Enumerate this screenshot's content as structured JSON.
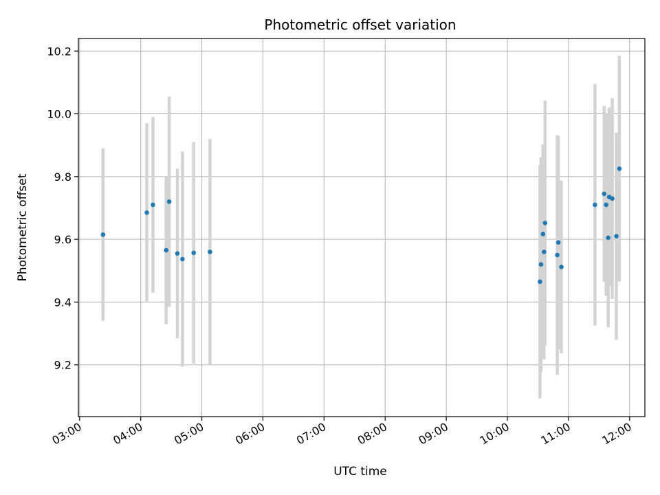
{
  "chart_data": {
    "type": "scatter",
    "title": "Photometric offset variation",
    "xlabel": "UTC time",
    "ylabel": "Photometric offset",
    "x_ticks": [
      "03:00",
      "04:00",
      "05:00",
      "06:00",
      "07:00",
      "08:00",
      "09:00",
      "10:00",
      "11:00",
      "12:00"
    ],
    "x_tick_hours": [
      3,
      4,
      5,
      6,
      7,
      8,
      9,
      10,
      11,
      12
    ],
    "y_ticks": [
      "9.2",
      "9.4",
      "9.6",
      "9.8",
      "10.0",
      "10.2"
    ],
    "y_tick_values": [
      9.2,
      9.4,
      9.6,
      9.8,
      10.0,
      10.2
    ],
    "xlim_hours": [
      2.98,
      12.25
    ],
    "ylim": [
      9.035,
      10.24
    ],
    "grid": true,
    "colors": {
      "points": "#1f77b4",
      "errorbars": "#d3d3d3",
      "grid": "#b0b0b0"
    },
    "points": [
      {
        "x": "03:23",
        "y": 9.615,
        "err": 0.275
      },
      {
        "x": "04:06",
        "y": 9.685,
        "err": 0.285
      },
      {
        "x": "04:12",
        "y": 9.71,
        "err": 0.28
      },
      {
        "x": "04:25",
        "y": 9.565,
        "err": 0.235
      },
      {
        "x": "04:28",
        "y": 9.72,
        "err": 0.335
      },
      {
        "x": "04:36",
        "y": 9.555,
        "err": 0.27
      },
      {
        "x": "04:41",
        "y": 9.537,
        "err": 0.343
      },
      {
        "x": "04:52",
        "y": 9.557,
        "err": 0.353
      },
      {
        "x": "05:08",
        "y": 9.56,
        "err": 0.36
      },
      {
        "x": "10:32",
        "y": 9.465,
        "err": 0.372
      },
      {
        "x": "10:33",
        "y": 9.52,
        "err": 0.342
      },
      {
        "x": "10:35",
        "y": 9.617,
        "err": 0.285
      },
      {
        "x": "10:36",
        "y": 9.56,
        "err": 0.343
      },
      {
        "x": "10:37",
        "y": 9.652,
        "err": 0.39
      },
      {
        "x": "10:49",
        "y": 9.55,
        "err": 0.382
      },
      {
        "x": "10:50",
        "y": 9.59,
        "err": 0.34
      },
      {
        "x": "10:53",
        "y": 9.512,
        "err": 0.275
      },
      {
        "x": "11:26",
        "y": 9.71,
        "err": 0.385
      },
      {
        "x": "11:35",
        "y": 9.745,
        "err": 0.28
      },
      {
        "x": "11:37",
        "y": 9.71,
        "err": 0.29
      },
      {
        "x": "11:39",
        "y": 9.605,
        "err": 0.285
      },
      {
        "x": "11:40",
        "y": 9.735,
        "err": 0.285
      },
      {
        "x": "11:43",
        "y": 9.73,
        "err": 0.32
      },
      {
        "x": "11:47",
        "y": 9.61,
        "err": 0.33
      },
      {
        "x": "11:50",
        "y": 9.825,
        "err": 0.36
      }
    ]
  }
}
